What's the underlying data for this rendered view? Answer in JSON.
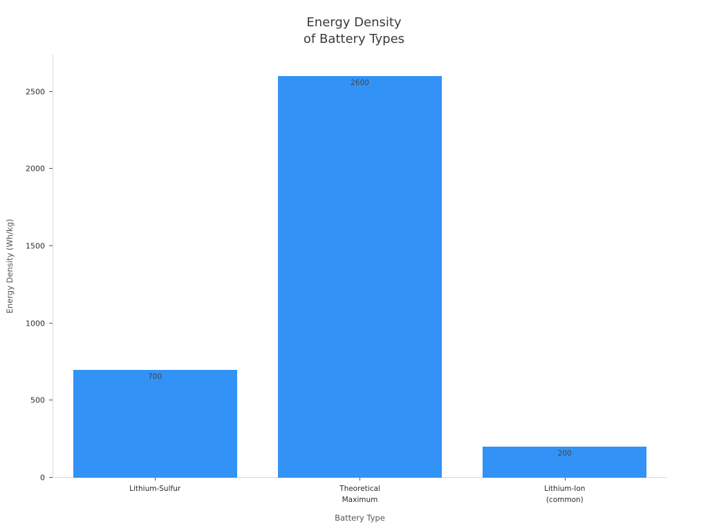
{
  "chart_data": {
    "type": "bar",
    "title": "Energy Density\nof Battery Types",
    "xlabel": "Battery Type",
    "ylabel": "Energy Density (Wh/kg)",
    "categories": [
      "Lithium-Sulfur",
      "Theoretical\nMaximum",
      "Lithium-Ion\n(common)"
    ],
    "values": [
      700,
      2600,
      200
    ],
    "value_labels": [
      "700",
      "2600",
      "200"
    ],
    "yticks": [
      0,
      500,
      1000,
      1500,
      2000,
      2500
    ],
    "ylim": [
      0,
      2740
    ],
    "grid": false,
    "legend": false,
    "bar_width_fraction": 0.8,
    "orientation": "vertical"
  },
  "colors": {
    "bar": "#3392f5",
    "axis_line": "#d9d9d9",
    "tick_mark": "#555555",
    "tick_label": "#2b2b2b",
    "value_label": "#40464c",
    "axis_title": "#555555",
    "chart_title": "#3a3a3a",
    "background": "#ffffff"
  }
}
